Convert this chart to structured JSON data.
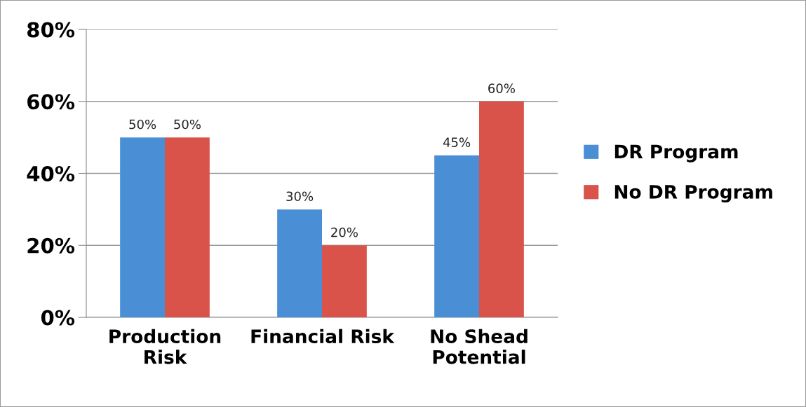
{
  "chart_data": {
    "type": "bar",
    "categories": [
      "Production\nRisk",
      "Financial Risk",
      "No Shead\nPotential"
    ],
    "series": [
      {
        "name": "DR Program",
        "color": "#4a8fd6",
        "values": [
          50,
          30,
          45
        ],
        "value_labels": [
          "50%",
          "30%",
          "45%"
        ]
      },
      {
        "name": "No DR Program",
        "color": "#d9534a",
        "values": [
          50,
          20,
          60
        ],
        "value_labels": [
          "50%",
          "20%",
          "60%"
        ]
      }
    ],
    "ylim": [
      0,
      80
    ],
    "yticks": [
      {
        "value": 0,
        "label": "0%"
      },
      {
        "value": 20,
        "label": "20%"
      },
      {
        "value": 40,
        "label": "40%"
      },
      {
        "value": 60,
        "label": "60%"
      },
      {
        "value": 80,
        "label": "80%"
      }
    ],
    "grid": "y",
    "legend": "right"
  }
}
